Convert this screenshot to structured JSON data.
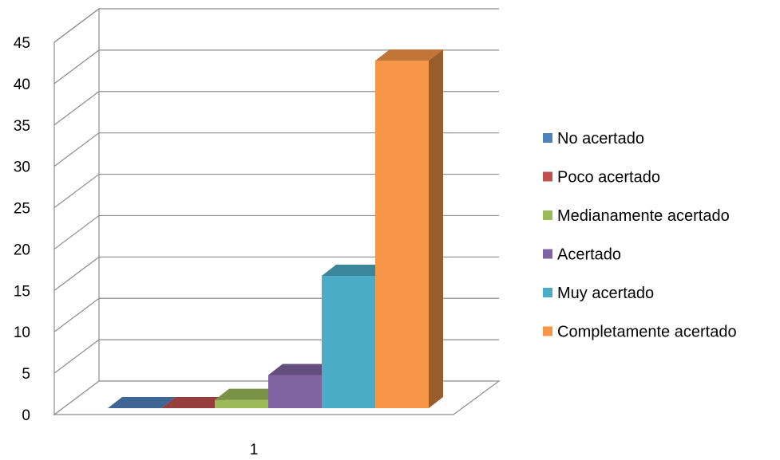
{
  "chart_data": {
    "type": "bar",
    "style": "3d-clustered-column",
    "categories": [
      "1"
    ],
    "series": [
      {
        "name": "No acertado",
        "values": [
          0
        ],
        "color": "#4F81BD"
      },
      {
        "name": "Poco acertado",
        "values": [
          0
        ],
        "color": "#C0504D"
      },
      {
        "name": "Medianamente acertado",
        "values": [
          1
        ],
        "color": "#9BBB59"
      },
      {
        "name": "Acertado",
        "values": [
          4
        ],
        "color": "#8064A2"
      },
      {
        "name": "Muy acertado",
        "values": [
          16
        ],
        "color": "#4BACC6"
      },
      {
        "name": "Completamente acertado",
        "values": [
          42
        ],
        "color": "#F79646"
      }
    ],
    "title": "",
    "xlabel": "",
    "ylabel": "",
    "ylim": [
      0,
      45
    ],
    "yticks": [
      "0",
      "5",
      "10",
      "15",
      "20",
      "25",
      "30",
      "35",
      "40",
      "45"
    ],
    "grid": true,
    "legend_position": "right"
  }
}
